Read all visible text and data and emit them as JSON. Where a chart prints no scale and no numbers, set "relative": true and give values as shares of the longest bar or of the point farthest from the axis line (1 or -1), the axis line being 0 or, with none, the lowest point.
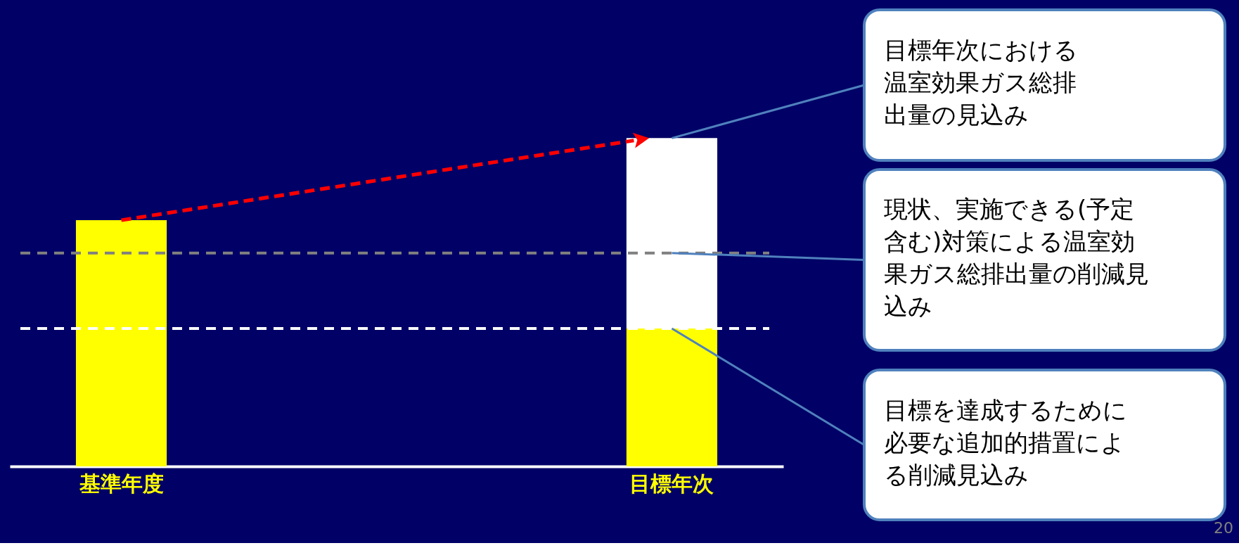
{
  "chart_data": {
    "type": "bar",
    "relative": true,
    "stacked": true,
    "categories": [
      "基準年度",
      "目標年次"
    ],
    "series": [
      {
        "color": "#ffff00",
        "values": [
          0.75,
          0.42
        ]
      },
      {
        "color": "#ffffff",
        "values": [
          null,
          0.58
        ]
      }
    ],
    "ref_lines": [
      {
        "axis": "y",
        "value": 0.65,
        "color": "#808080",
        "line_style": "dashed"
      },
      {
        "axis": "y",
        "value": 0.42,
        "color": "#ffffff",
        "line_style": "dashed"
      }
    ],
    "annotations": [
      {
        "text": "目標年次における温室効果ガス総排出量の見込み",
        "x": "目標年次",
        "y": 1.0
      },
      {
        "text": "現状、実施できる(予定含む)対策による温室効果ガス総排出量の削減見込み",
        "x": "目標年次",
        "y": 0.65
      },
      {
        "text": "目標を達成するために必要な追加的措置による削減見込み",
        "x": "目標年次",
        "y": 0.42
      },
      "20"
    ],
    "legend": false,
    "grid": false
  }
}
